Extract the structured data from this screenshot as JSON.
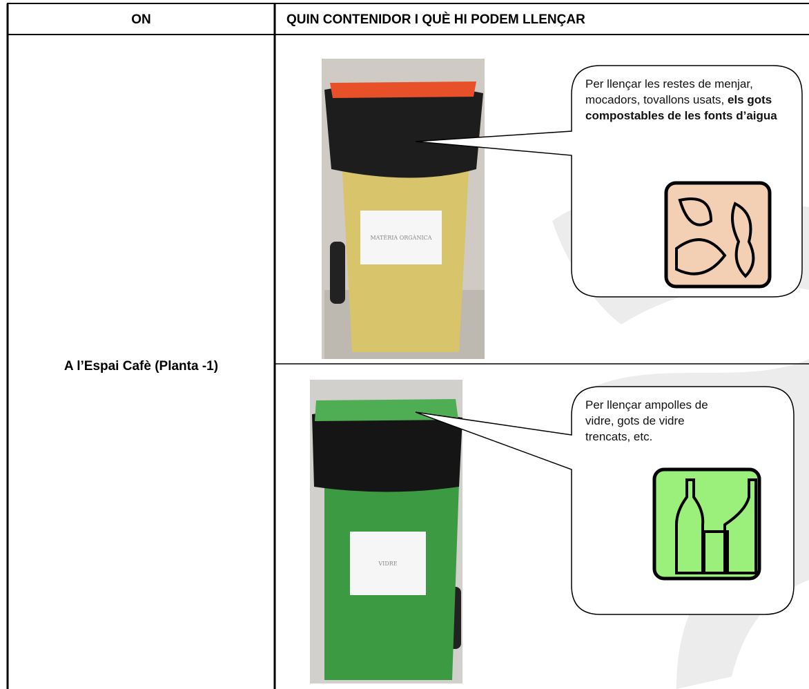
{
  "header": {
    "col1": "ON",
    "col2": "QUIN CONTENIDOR I QUÈ HI PODEM LLENÇAR"
  },
  "location": "A l’Espai Cafè (Planta -1)",
  "containers": [
    {
      "label": "MATÈRIA ORGÀNICA",
      "description": [
        {
          "text": "Per llençar les restes de menjar,  mocadors, tovallons usats, ",
          "bold": false
        },
        {
          "text": "els gots compostables de les fonts d’aigua",
          "bold": true
        }
      ]
    },
    {
      "label": "VIDRE",
      "description": [
        {
          "text": "Per llençar ampolles de vidre, gots de vidre trencats, etc.",
          "bold": false
        }
      ]
    }
  ]
}
